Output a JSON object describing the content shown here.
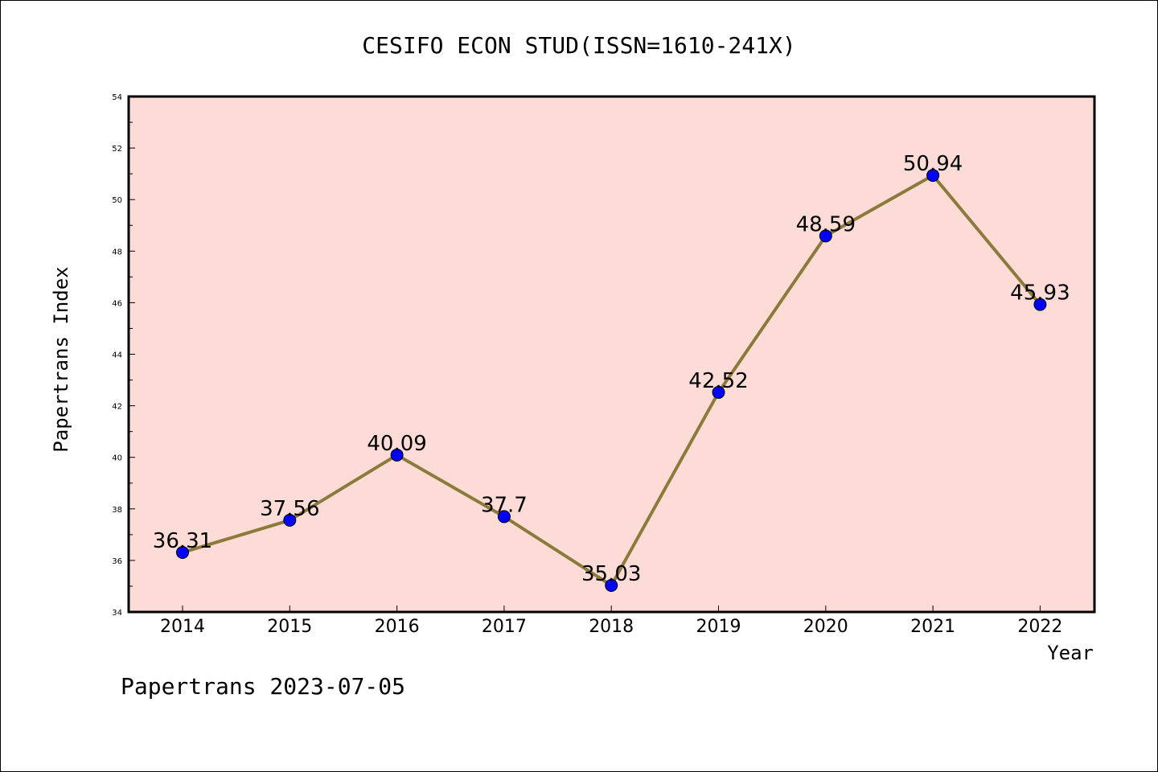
{
  "chart_data": {
    "type": "line",
    "title": "CESIFO ECON STUD(ISSN=1610-241X)",
    "xlabel": "Year",
    "ylabel": "Papertrans Index",
    "categories": [
      "2014",
      "2015",
      "2016",
      "2017",
      "2018",
      "2019",
      "2020",
      "2021",
      "2022"
    ],
    "series": [
      {
        "values": [
          36.31,
          37.56,
          40.09,
          37.7,
          35.03,
          42.52,
          48.59,
          50.94,
          45.93
        ]
      }
    ],
    "data_labels": [
      "36.31",
      "37.56",
      "40.09",
      "37.7",
      "35.03",
      "42.52",
      "48.59",
      "50.94",
      "45.93"
    ],
    "ylim": [
      34,
      54
    ],
    "yticks": [
      "34",
      "36",
      "38",
      "40",
      "42",
      "44",
      "46",
      "48",
      "50",
      "52",
      "54"
    ],
    "grid": false,
    "colors": {
      "plot_background": "#fddcd8",
      "line": "#8b7a3a",
      "marker": "#0000ff"
    }
  },
  "footer": "Papertrans 2023-07-05"
}
